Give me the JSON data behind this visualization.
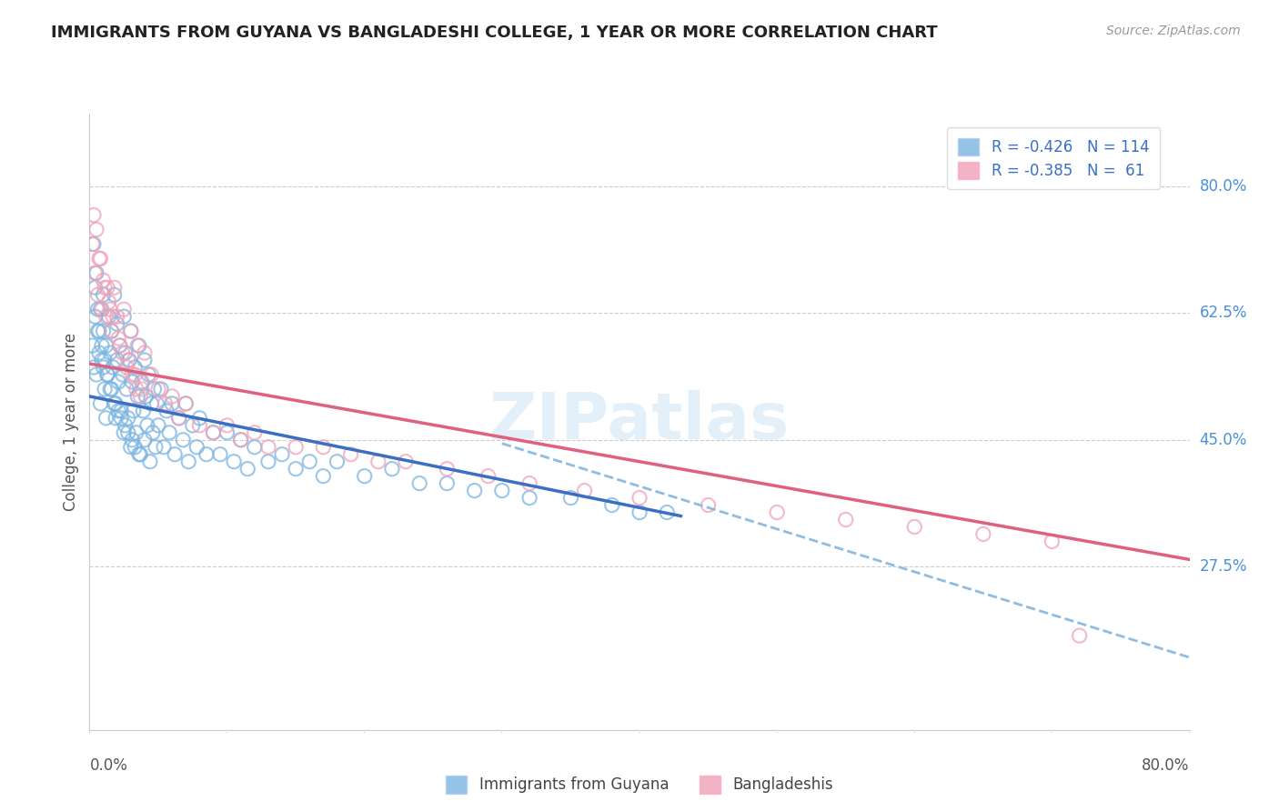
{
  "title": "IMMIGRANTS FROM GUYANA VS BANGLADESHI COLLEGE, 1 YEAR OR MORE CORRELATION CHART",
  "source_text": "Source: ZipAtlas.com",
  "ylabel": "College, 1 year or more",
  "ytick_labels": [
    "80.0%",
    "62.5%",
    "45.0%",
    "27.5%"
  ],
  "ytick_values": [
    0.8,
    0.625,
    0.45,
    0.275
  ],
  "legend_label1": "Immigrants from Guyana",
  "legend_label2": "Bangladeshis",
  "blue_color": "#7ab4e0",
  "pink_color": "#f0a0b8",
  "blue_line_color": "#3a6fc4",
  "pink_line_color": "#e06080",
  "dashed_line_color": "#90bce0",
  "watermark": "ZIPatlas",
  "xlim": [
    0.0,
    0.8
  ],
  "ylim": [
    0.05,
    0.9
  ],
  "blue_line_x": [
    0.0,
    0.43
  ],
  "blue_line_y": [
    0.51,
    0.345
  ],
  "pink_line_x": [
    0.0,
    0.8
  ],
  "pink_line_y": [
    0.555,
    0.285
  ],
  "dashed_line_x": [
    0.3,
    0.8
  ],
  "dashed_line_y": [
    0.445,
    0.15
  ],
  "blue_scatter_x": [
    0.002,
    0.003,
    0.004,
    0.005,
    0.005,
    0.006,
    0.007,
    0.008,
    0.008,
    0.009,
    0.01,
    0.01,
    0.01,
    0.011,
    0.012,
    0.012,
    0.013,
    0.014,
    0.015,
    0.015,
    0.016,
    0.017,
    0.018,
    0.018,
    0.019,
    0.02,
    0.02,
    0.021,
    0.022,
    0.023,
    0.024,
    0.025,
    0.025,
    0.026,
    0.027,
    0.028,
    0.029,
    0.03,
    0.03,
    0.031,
    0.032,
    0.033,
    0.034,
    0.035,
    0.036,
    0.037,
    0.038,
    0.039,
    0.04,
    0.04,
    0.041,
    0.042,
    0.043,
    0.044,
    0.045,
    0.046,
    0.047,
    0.048,
    0.049,
    0.05,
    0.052,
    0.054,
    0.056,
    0.058,
    0.06,
    0.062,
    0.065,
    0.068,
    0.07,
    0.072,
    0.075,
    0.078,
    0.08,
    0.085,
    0.09,
    0.095,
    0.1,
    0.105,
    0.11,
    0.115,
    0.12,
    0.13,
    0.14,
    0.15,
    0.16,
    0.17,
    0.18,
    0.2,
    0.22,
    0.24,
    0.26,
    0.28,
    0.3,
    0.32,
    0.35,
    0.38,
    0.4,
    0.42,
    0.003,
    0.004,
    0.006,
    0.007,
    0.009,
    0.011,
    0.013,
    0.016,
    0.019,
    0.021,
    0.023,
    0.026,
    0.028,
    0.031,
    0.033,
    0.036
  ],
  "blue_scatter_y": [
    0.58,
    0.55,
    0.62,
    0.68,
    0.54,
    0.6,
    0.57,
    0.63,
    0.5,
    0.56,
    0.65,
    0.6,
    0.55,
    0.52,
    0.58,
    0.48,
    0.54,
    0.62,
    0.57,
    0.52,
    0.6,
    0.55,
    0.5,
    0.65,
    0.48,
    0.56,
    0.61,
    0.53,
    0.58,
    0.49,
    0.54,
    0.62,
    0.46,
    0.57,
    0.52,
    0.48,
    0.56,
    0.6,
    0.44,
    0.53,
    0.49,
    0.55,
    0.46,
    0.51,
    0.58,
    0.43,
    0.53,
    0.49,
    0.56,
    0.45,
    0.51,
    0.47,
    0.54,
    0.42,
    0.5,
    0.46,
    0.52,
    0.44,
    0.5,
    0.47,
    0.52,
    0.44,
    0.49,
    0.46,
    0.5,
    0.43,
    0.48,
    0.45,
    0.5,
    0.42,
    0.47,
    0.44,
    0.48,
    0.43,
    0.46,
    0.43,
    0.46,
    0.42,
    0.45,
    0.41,
    0.44,
    0.42,
    0.43,
    0.41,
    0.42,
    0.4,
    0.42,
    0.4,
    0.41,
    0.39,
    0.39,
    0.38,
    0.38,
    0.37,
    0.37,
    0.36,
    0.35,
    0.35,
    0.72,
    0.66,
    0.63,
    0.6,
    0.58,
    0.56,
    0.54,
    0.52,
    0.5,
    0.49,
    0.48,
    0.47,
    0.46,
    0.45,
    0.44,
    0.43
  ],
  "pink_scatter_x": [
    0.002,
    0.004,
    0.005,
    0.006,
    0.008,
    0.009,
    0.01,
    0.012,
    0.013,
    0.015,
    0.016,
    0.018,
    0.02,
    0.022,
    0.025,
    0.028,
    0.03,
    0.033,
    0.035,
    0.038,
    0.04,
    0.045,
    0.05,
    0.055,
    0.06,
    0.065,
    0.07,
    0.08,
    0.09,
    0.1,
    0.11,
    0.12,
    0.13,
    0.15,
    0.17,
    0.19,
    0.21,
    0.23,
    0.26,
    0.29,
    0.32,
    0.36,
    0.4,
    0.45,
    0.5,
    0.55,
    0.6,
    0.65,
    0.7,
    0.003,
    0.007,
    0.011,
    0.014,
    0.017,
    0.021,
    0.024,
    0.027,
    0.031,
    0.034,
    0.037,
    0.72
  ],
  "pink_scatter_y": [
    0.72,
    0.68,
    0.74,
    0.65,
    0.7,
    0.63,
    0.67,
    0.62,
    0.66,
    0.63,
    0.6,
    0.66,
    0.62,
    0.58,
    0.63,
    0.56,
    0.6,
    0.54,
    0.58,
    0.52,
    0.57,
    0.54,
    0.52,
    0.5,
    0.51,
    0.48,
    0.5,
    0.47,
    0.46,
    0.47,
    0.45,
    0.46,
    0.44,
    0.44,
    0.44,
    0.43,
    0.42,
    0.42,
    0.41,
    0.4,
    0.39,
    0.38,
    0.37,
    0.36,
    0.35,
    0.34,
    0.33,
    0.32,
    0.31,
    0.76,
    0.7,
    0.66,
    0.64,
    0.62,
    0.59,
    0.57,
    0.55,
    0.54,
    0.52,
    0.51,
    0.18
  ]
}
